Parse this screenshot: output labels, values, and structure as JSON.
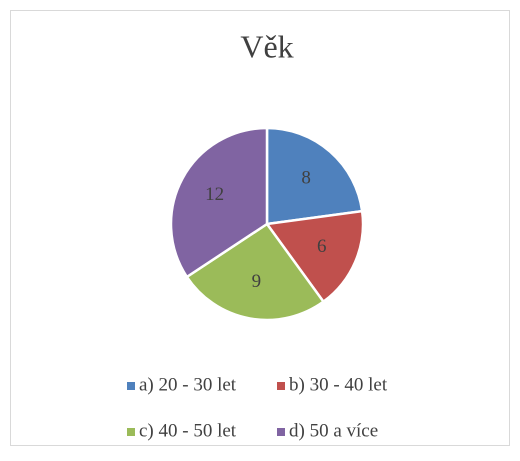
{
  "chart_data": {
    "type": "pie",
    "title": "Věk",
    "categories": [
      "a) 20 - 30 let",
      "b) 30 - 40 let",
      "c) 40 - 50 let",
      "d) 50 a více"
    ],
    "values": [
      8,
      6,
      9,
      12
    ],
    "colors": [
      "#4f81bd",
      "#c0504d",
      "#9bbb59",
      "#8064a2"
    ],
    "legend": "bottom"
  }
}
